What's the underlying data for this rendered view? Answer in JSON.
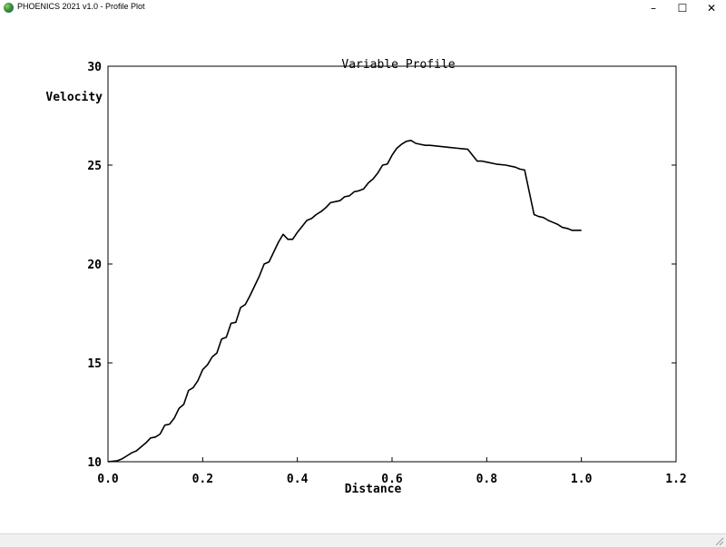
{
  "window": {
    "title": "PHOENICS 2021 v1.0 - Profile Plot",
    "minimize_glyph": "–",
    "maximize_glyph": "☐",
    "close_glyph": "✕"
  },
  "chart_data": {
    "type": "line",
    "title": "Variable Profile",
    "xlabel": "Distance",
    "ylabel": "Velocity",
    "xlim": [
      0,
      1.2
    ],
    "ylim": [
      10,
      30
    ],
    "xticks": [
      "0.0",
      "0.2",
      "0.4",
      "0.6",
      "0.8",
      "1.0",
      "1.2"
    ],
    "yticks": [
      "10",
      "15",
      "20",
      "25",
      "30"
    ],
    "grid": false,
    "line_color": "#000000",
    "series": [
      {
        "x": [
          0.0,
          0.02,
          0.03,
          0.04,
          0.05,
          0.06,
          0.07,
          0.08,
          0.09,
          0.1,
          0.11,
          0.12,
          0.13,
          0.14,
          0.15,
          0.16,
          0.17,
          0.18,
          0.19,
          0.2,
          0.21,
          0.22,
          0.23,
          0.24,
          0.25,
          0.26,
          0.27,
          0.28,
          0.29,
          0.3,
          0.31,
          0.32,
          0.33,
          0.34,
          0.35,
          0.36,
          0.37,
          0.38,
          0.39,
          0.4,
          0.41,
          0.42,
          0.43,
          0.44,
          0.45,
          0.46,
          0.47,
          0.48,
          0.49,
          0.5,
          0.51,
          0.52,
          0.53,
          0.54,
          0.55,
          0.56,
          0.57,
          0.58,
          0.59,
          0.6,
          0.61,
          0.62,
          0.63,
          0.64,
          0.65,
          0.66,
          0.67,
          0.68,
          0.7,
          0.72,
          0.74,
          0.76,
          0.78,
          0.79,
          0.8,
          0.82,
          0.84,
          0.86,
          0.87,
          0.88,
          0.9,
          0.91,
          0.92,
          0.93,
          0.94,
          0.95,
          0.96,
          0.97,
          0.98,
          0.99,
          1.0
        ],
        "y": [
          10.0,
          10.05,
          10.15,
          10.3,
          10.45,
          10.55,
          10.75,
          10.95,
          11.2,
          11.25,
          11.4,
          11.85,
          11.9,
          12.2,
          12.7,
          12.9,
          13.6,
          13.75,
          14.1,
          14.65,
          14.9,
          15.3,
          15.5,
          16.2,
          16.3,
          17.0,
          17.05,
          17.8,
          17.95,
          18.4,
          18.9,
          19.4,
          20.0,
          20.1,
          20.6,
          21.1,
          21.5,
          21.25,
          21.25,
          21.6,
          21.9,
          22.2,
          22.3,
          22.5,
          22.65,
          22.85,
          23.1,
          23.15,
          23.2,
          23.4,
          23.45,
          23.65,
          23.7,
          23.8,
          24.1,
          24.3,
          24.6,
          25.0,
          25.05,
          25.5,
          25.85,
          26.05,
          26.2,
          26.25,
          26.1,
          26.05,
          26.0,
          26.0,
          25.95,
          25.9,
          25.85,
          25.8,
          25.2,
          25.2,
          25.15,
          25.05,
          25.0,
          24.9,
          24.8,
          24.75,
          22.5,
          22.4,
          22.35,
          22.2,
          22.1,
          22.0,
          21.85,
          21.8,
          21.7,
          21.7,
          21.7
        ]
      }
    ]
  }
}
